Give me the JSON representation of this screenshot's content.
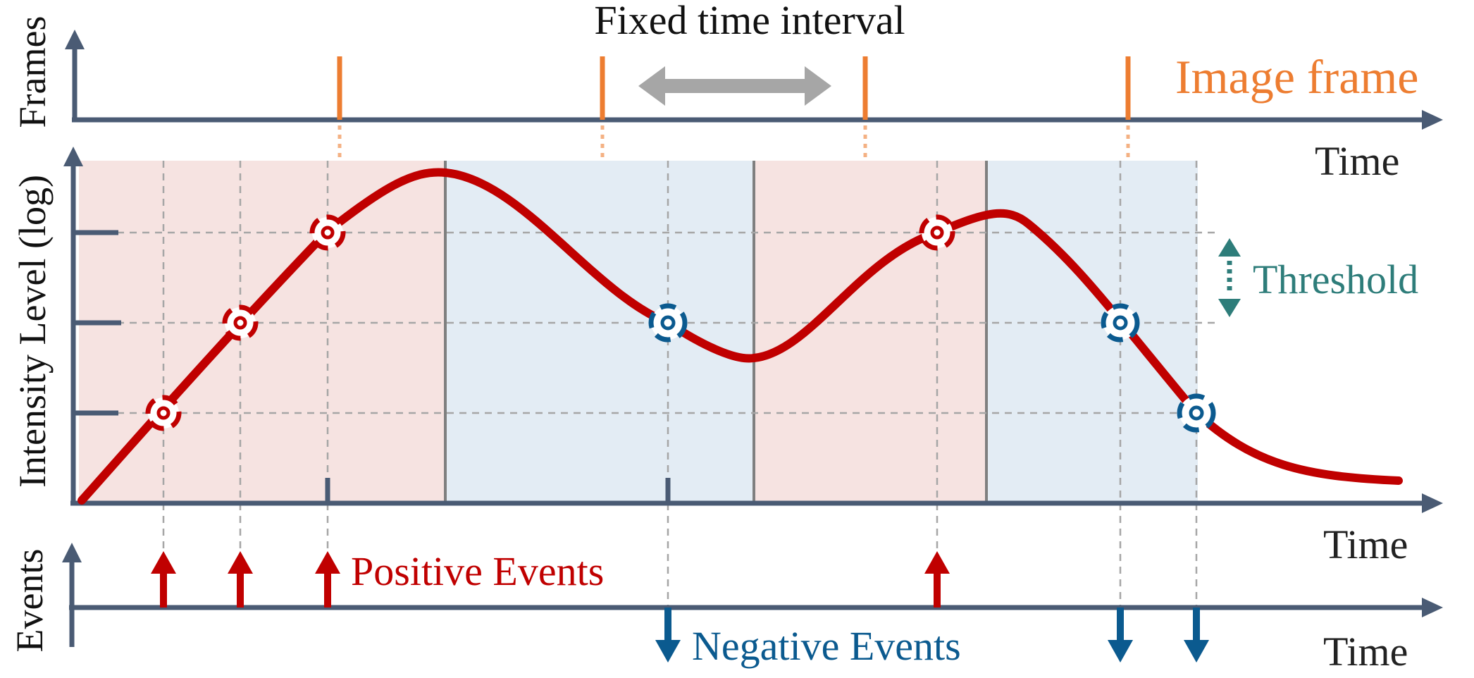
{
  "labels": {
    "frames_axis": "Frames",
    "intensity_axis": "Intensity Level (log)",
    "events_axis": "Events",
    "time_top": "Time",
    "time_middle": "Time",
    "time_bottom": "Time",
    "fixed_interval": "Fixed time interval",
    "image_frame": "Image frame",
    "threshold": "Threshold",
    "positive_events": "Positive Events",
    "negative_events": "Negative Events"
  },
  "colors": {
    "axis": "#4a5b74",
    "curve": "#c00000",
    "positive": "#c00000",
    "negative": "#0b5a8f",
    "frame": "#ed7d31",
    "threshold": "#2e7d7a",
    "interval_arrow": "#a6a6a6",
    "band_positive": "#f6e3e1",
    "band_negative": "#e3ecf4",
    "grid": "#a6a6a6",
    "band_divider": "#7f7f7f"
  },
  "threshold_levels": [
    1,
    2,
    3
  ],
  "frame_count": 4,
  "positive_event_count": 4,
  "negative_event_count": 3
}
